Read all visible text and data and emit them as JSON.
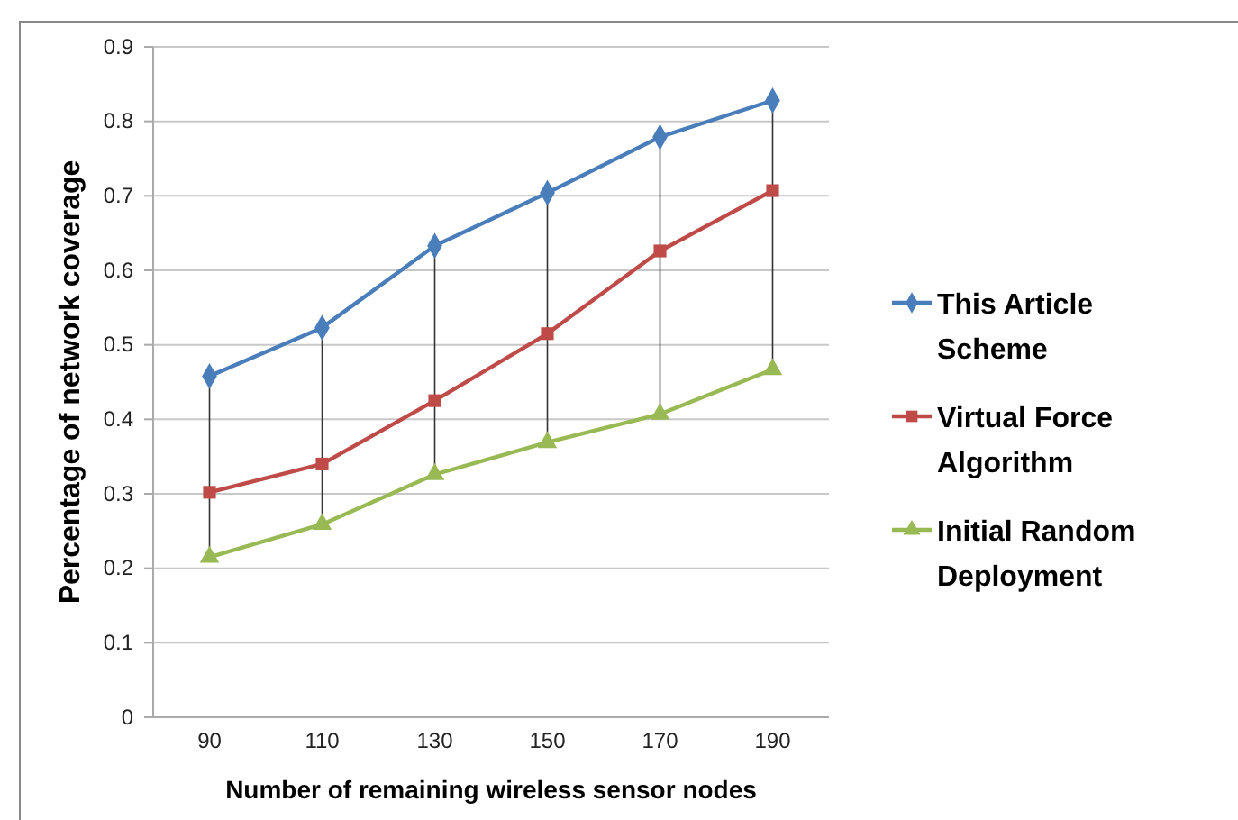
{
  "chart_data": {
    "type": "line",
    "xlabel": "Number of remaining wireless sensor nodes",
    "ylabel": "Percentage of network coverage",
    "categories": [
      "90",
      "110",
      "130",
      "150",
      "170",
      "190"
    ],
    "series": [
      {
        "name": "This Article Scheme",
        "color": "#4a7ebb",
        "marker": "diamond",
        "values": [
          0.458,
          0.523,
          0.633,
          0.704,
          0.779,
          0.828
        ]
      },
      {
        "name": "Virtual Force Algorithm",
        "color": "#be4b48",
        "marker": "square",
        "values": [
          0.302,
          0.34,
          0.425,
          0.515,
          0.626,
          0.707
        ]
      },
      {
        "name": "Initial Random Deployment",
        "color": "#98b954",
        "marker": "triangle",
        "values": [
          0.215,
          0.259,
          0.326,
          0.369,
          0.407,
          0.467
        ]
      }
    ],
    "ylim": [
      0,
      0.9
    ],
    "yticks": [
      0,
      0.1,
      0.2,
      0.3,
      0.4,
      0.5,
      0.6,
      0.7,
      0.8,
      0.9
    ],
    "grid": "y",
    "legend": "right"
  }
}
